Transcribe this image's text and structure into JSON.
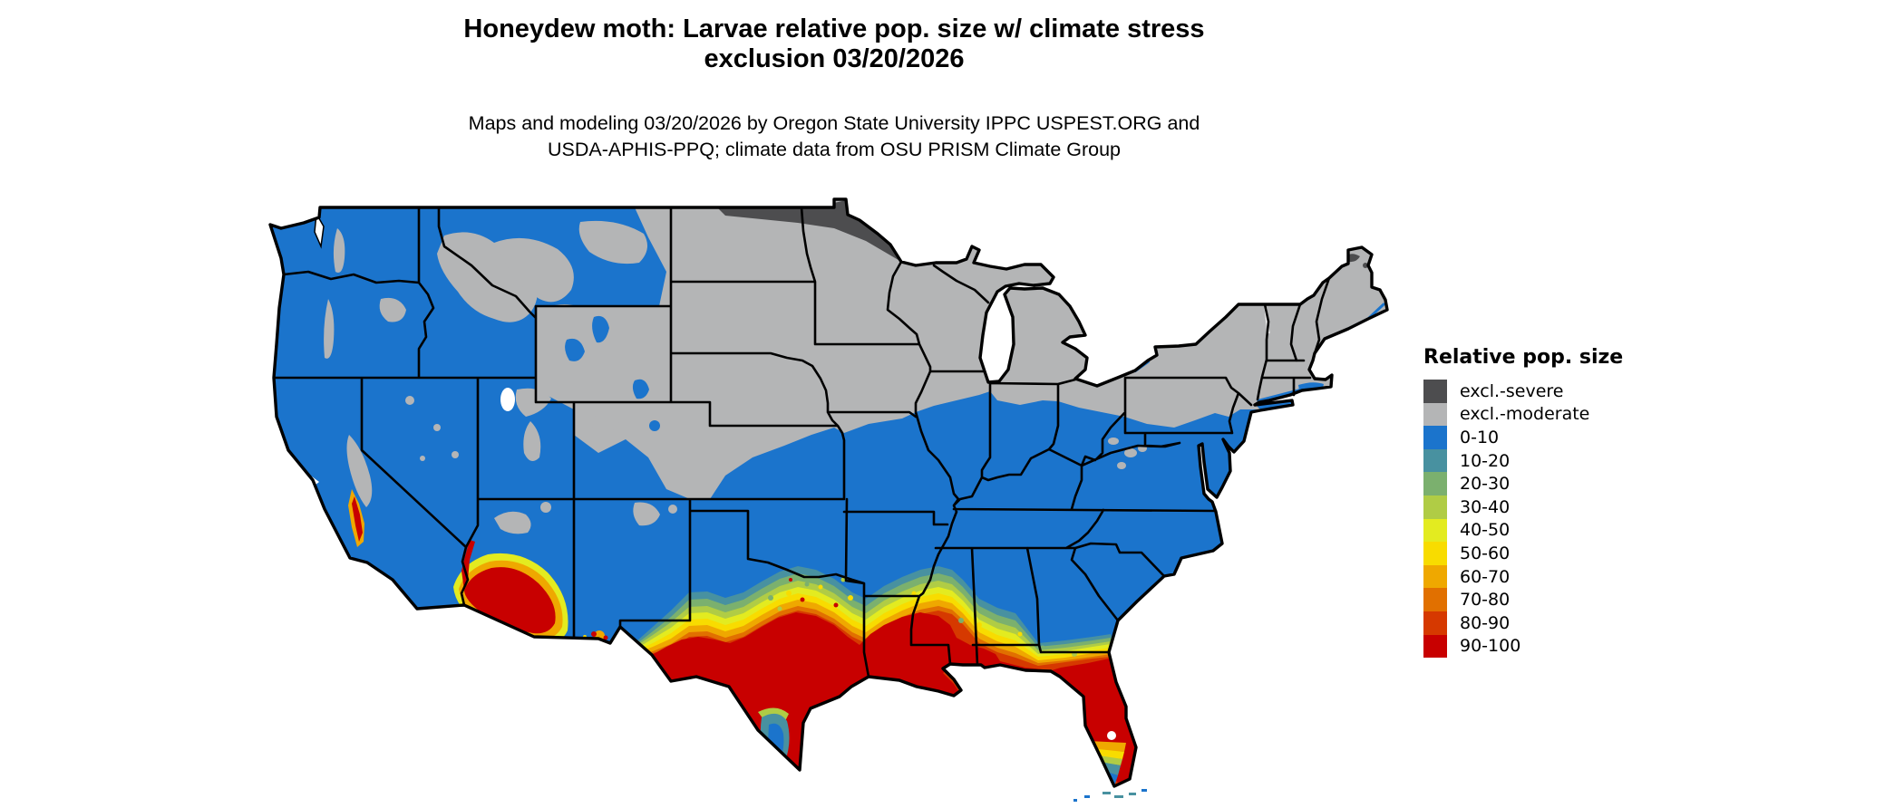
{
  "title": {
    "line1": "Honeydew moth: Larvae relative pop. size w/ climate stress",
    "line2": "exclusion 03/20/2026"
  },
  "subtitle": {
    "line1": "Maps and modeling 03/20/2026 by Oregon State University IPPC USPEST.ORG and",
    "line2": "USDA-APHIS-PPQ; climate data from OSU PRISM Climate Group"
  },
  "legend": {
    "title": "Relative pop. size",
    "items": [
      {
        "label": "excl.-severe",
        "color": "#4D4D4F"
      },
      {
        "label": "excl.-moderate",
        "color": "#B4B5B6"
      },
      {
        "label": "0-10",
        "color": "#1B74CC"
      },
      {
        "label": "10-20",
        "color": "#4891A0"
      },
      {
        "label": "20-30",
        "color": "#7BB06E"
      },
      {
        "label": "30-40",
        "color": "#B0CC45"
      },
      {
        "label": "40-50",
        "color": "#E3EB20"
      },
      {
        "label": "50-60",
        "color": "#F8DC00"
      },
      {
        "label": "60-70",
        "color": "#EFA800"
      },
      {
        "label": "70-80",
        "color": "#E17000"
      },
      {
        "label": "80-90",
        "color": "#D63900"
      },
      {
        "label": "90-100",
        "color": "#C80000"
      }
    ]
  },
  "colors": {
    "background": "#FFFFFF",
    "map_border": "#000000",
    "excl_severe": "#4D4D4F",
    "excl_moderate": "#B4B5B6",
    "c0": "#1B74CC",
    "c10": "#4891A0",
    "c20": "#7BB06E",
    "c30": "#B0CC45",
    "c40": "#E3EB20",
    "c50": "#F8DC00",
    "c60": "#EFA800",
    "c70": "#E17000",
    "c80": "#D63900",
    "c90": "#C80000"
  },
  "chart_data": {
    "type": "choropleth_map",
    "region": "Contiguous United States with state boundaries",
    "variable": "Larvae relative population size (%) with climate stress exclusion",
    "date_shown": "03/20/2026",
    "classes": [
      "excl.-severe",
      "excl.-moderate",
      "0-10",
      "10-20",
      "20-30",
      "30-40",
      "40-50",
      "50-60",
      "60-70",
      "70-80",
      "80-90",
      "90-100"
    ],
    "legend_position": "right",
    "spatial_pattern": {
      "excl_severe": "dark band along the Canadian border in northern Minnesota and northeastern North Dakota; small spots in northern Maine",
      "excl_moderate": "northern tier gray: Dakotas, Nebraska, Iowa, Minnesota, Wisconsin, Michigan, northern Missouri/Illinois/Indiana/Ohio, Pennsylvania, New York, New England, Wyoming, and Rocky Mountain / Sierra / Cascade highlands",
      "band_0_10": "blue across Pacific states, Great Basin, Southwest, southern Plains, mid-South, mid-Atlantic and Southeast interior",
      "transition_10_80": "narrow teal-green-yellow-orange arc across central Texas, northern Louisiana, southern Mississippi/Alabama, southern Georgia, northern Florida, and fringes around desert Arizona and coastal southern California; yellow-green at the southern tip of Florida",
      "band_90_100": "red over southern Texas, the Gulf Coast, Louisiana, the Florida peninsula, southwestern Arizona, and the southern California coast"
    }
  }
}
